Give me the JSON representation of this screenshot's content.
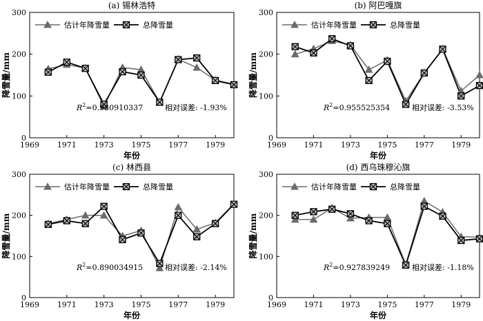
{
  "chart_data": [
    {
      "type": "line",
      "title": "(a) 锡林浩特",
      "xlabel": "年份",
      "ylabel": "降雪量/mm",
      "xlim": [
        1969,
        1980
      ],
      "ylim": [
        0,
        300
      ],
      "xticks": [
        1969,
        1971,
        1973,
        1975,
        1977,
        1979
      ],
      "yticks": [
        0,
        100,
        200,
        300
      ],
      "x": [
        1970,
        1971,
        1972,
        1973,
        1974,
        1975,
        1976,
        1977,
        1978,
        1979,
        1980
      ],
      "series": [
        {
          "name": "估计年降雪量",
          "values": [
            165,
            175,
            167,
            75,
            168,
            163,
            85,
            188,
            168,
            138,
            128
          ]
        },
        {
          "name": "总降雪量",
          "values": [
            157,
            181,
            166,
            80,
            158,
            150,
            85,
            187,
            191,
            137,
            127
          ]
        }
      ],
      "annotation": {
        "r2_label": "R",
        "r2_sup": "2",
        "r2_value": "=0.930910337",
        "error": "相对误差: -1.93%"
      }
    },
    {
      "type": "line",
      "title": "(b) 阿巴嘎旗",
      "xlabel": "年份",
      "ylabel": "降雪量/mm",
      "xlim": [
        1969,
        1980
      ],
      "ylim": [
        0,
        300
      ],
      "xticks": [
        1969,
        1971,
        1973,
        1975,
        1977,
        1979
      ],
      "yticks": [
        0,
        100,
        200,
        300
      ],
      "x": [
        1970,
        1971,
        1972,
        1973,
        1974,
        1975,
        1976,
        1977,
        1978,
        1979,
        1980
      ],
      "series": [
        {
          "name": "估计年降雪量",
          "values": [
            200,
            213,
            232,
            222,
            163,
            186,
            88,
            155,
            213,
            112,
            150
          ]
        },
        {
          "name": "总降雪量",
          "values": [
            218,
            203,
            237,
            220,
            137,
            183,
            80,
            155,
            212,
            100,
            125
          ]
        }
      ],
      "annotation": {
        "r2_label": "R",
        "r2_sup": "2",
        "r2_value": "=0.955525354",
        "error": "相对误差: -3.53%"
      }
    },
    {
      "type": "line",
      "title": "(c) 林西县",
      "xlabel": "年份",
      "ylabel": "降雪量/mm",
      "xlim": [
        1969,
        1980
      ],
      "ylim": [
        0,
        300
      ],
      "xticks": [
        1969,
        1971,
        1973,
        1975,
        1977,
        1979
      ],
      "yticks": [
        0,
        100,
        200,
        300
      ],
      "x": [
        1970,
        1971,
        1972,
        1973,
        1974,
        1975,
        1976,
        1977,
        1978,
        1979,
        1980
      ],
      "series": [
        {
          "name": "估计年降雪量",
          "values": [
            180,
            190,
            200,
            200,
            150,
            163,
            72,
            220,
            166,
            182,
            228
          ]
        },
        {
          "name": "总降雪量",
          "values": [
            178,
            187,
            180,
            222,
            141,
            157,
            83,
            200,
            148,
            180,
            227
          ]
        }
      ],
      "annotation": {
        "r2_label": "R",
        "r2_sup": "2",
        "r2_value": "=0.890034915",
        "error": "相对误差: -2.14%"
      }
    },
    {
      "type": "line",
      "title": "(d) 西乌珠穆沁旗",
      "xlabel": "年份",
      "ylabel": "降雪量/mm",
      "xlim": [
        1969,
        1980
      ],
      "ylim": [
        0,
        300
      ],
      "xticks": [
        1969,
        1971,
        1973,
        1975,
        1977,
        1979
      ],
      "yticks": [
        0,
        100,
        200,
        300
      ],
      "x": [
        1970,
        1971,
        1972,
        1973,
        1974,
        1975,
        1976,
        1977,
        1978,
        1979,
        1980
      ],
      "series": [
        {
          "name": "估计年降雪量",
          "values": [
            190,
            190,
            218,
            193,
            195,
            195,
            80,
            235,
            208,
            148,
            147
          ]
        },
        {
          "name": "总降雪量",
          "values": [
            200,
            209,
            215,
            204,
            187,
            180,
            79,
            222,
            198,
            139,
            143
          ]
        }
      ],
      "annotation": {
        "r2_label": "R",
        "r2_sup": "2",
        "r2_value": "=0.927839249",
        "error": "相对误差: -1.18%"
      }
    }
  ],
  "styles": {
    "estimated_color": "#6b6b6b",
    "total_color": "#000000",
    "estimated_marker": "triangle",
    "total_marker": "crossed-square"
  }
}
